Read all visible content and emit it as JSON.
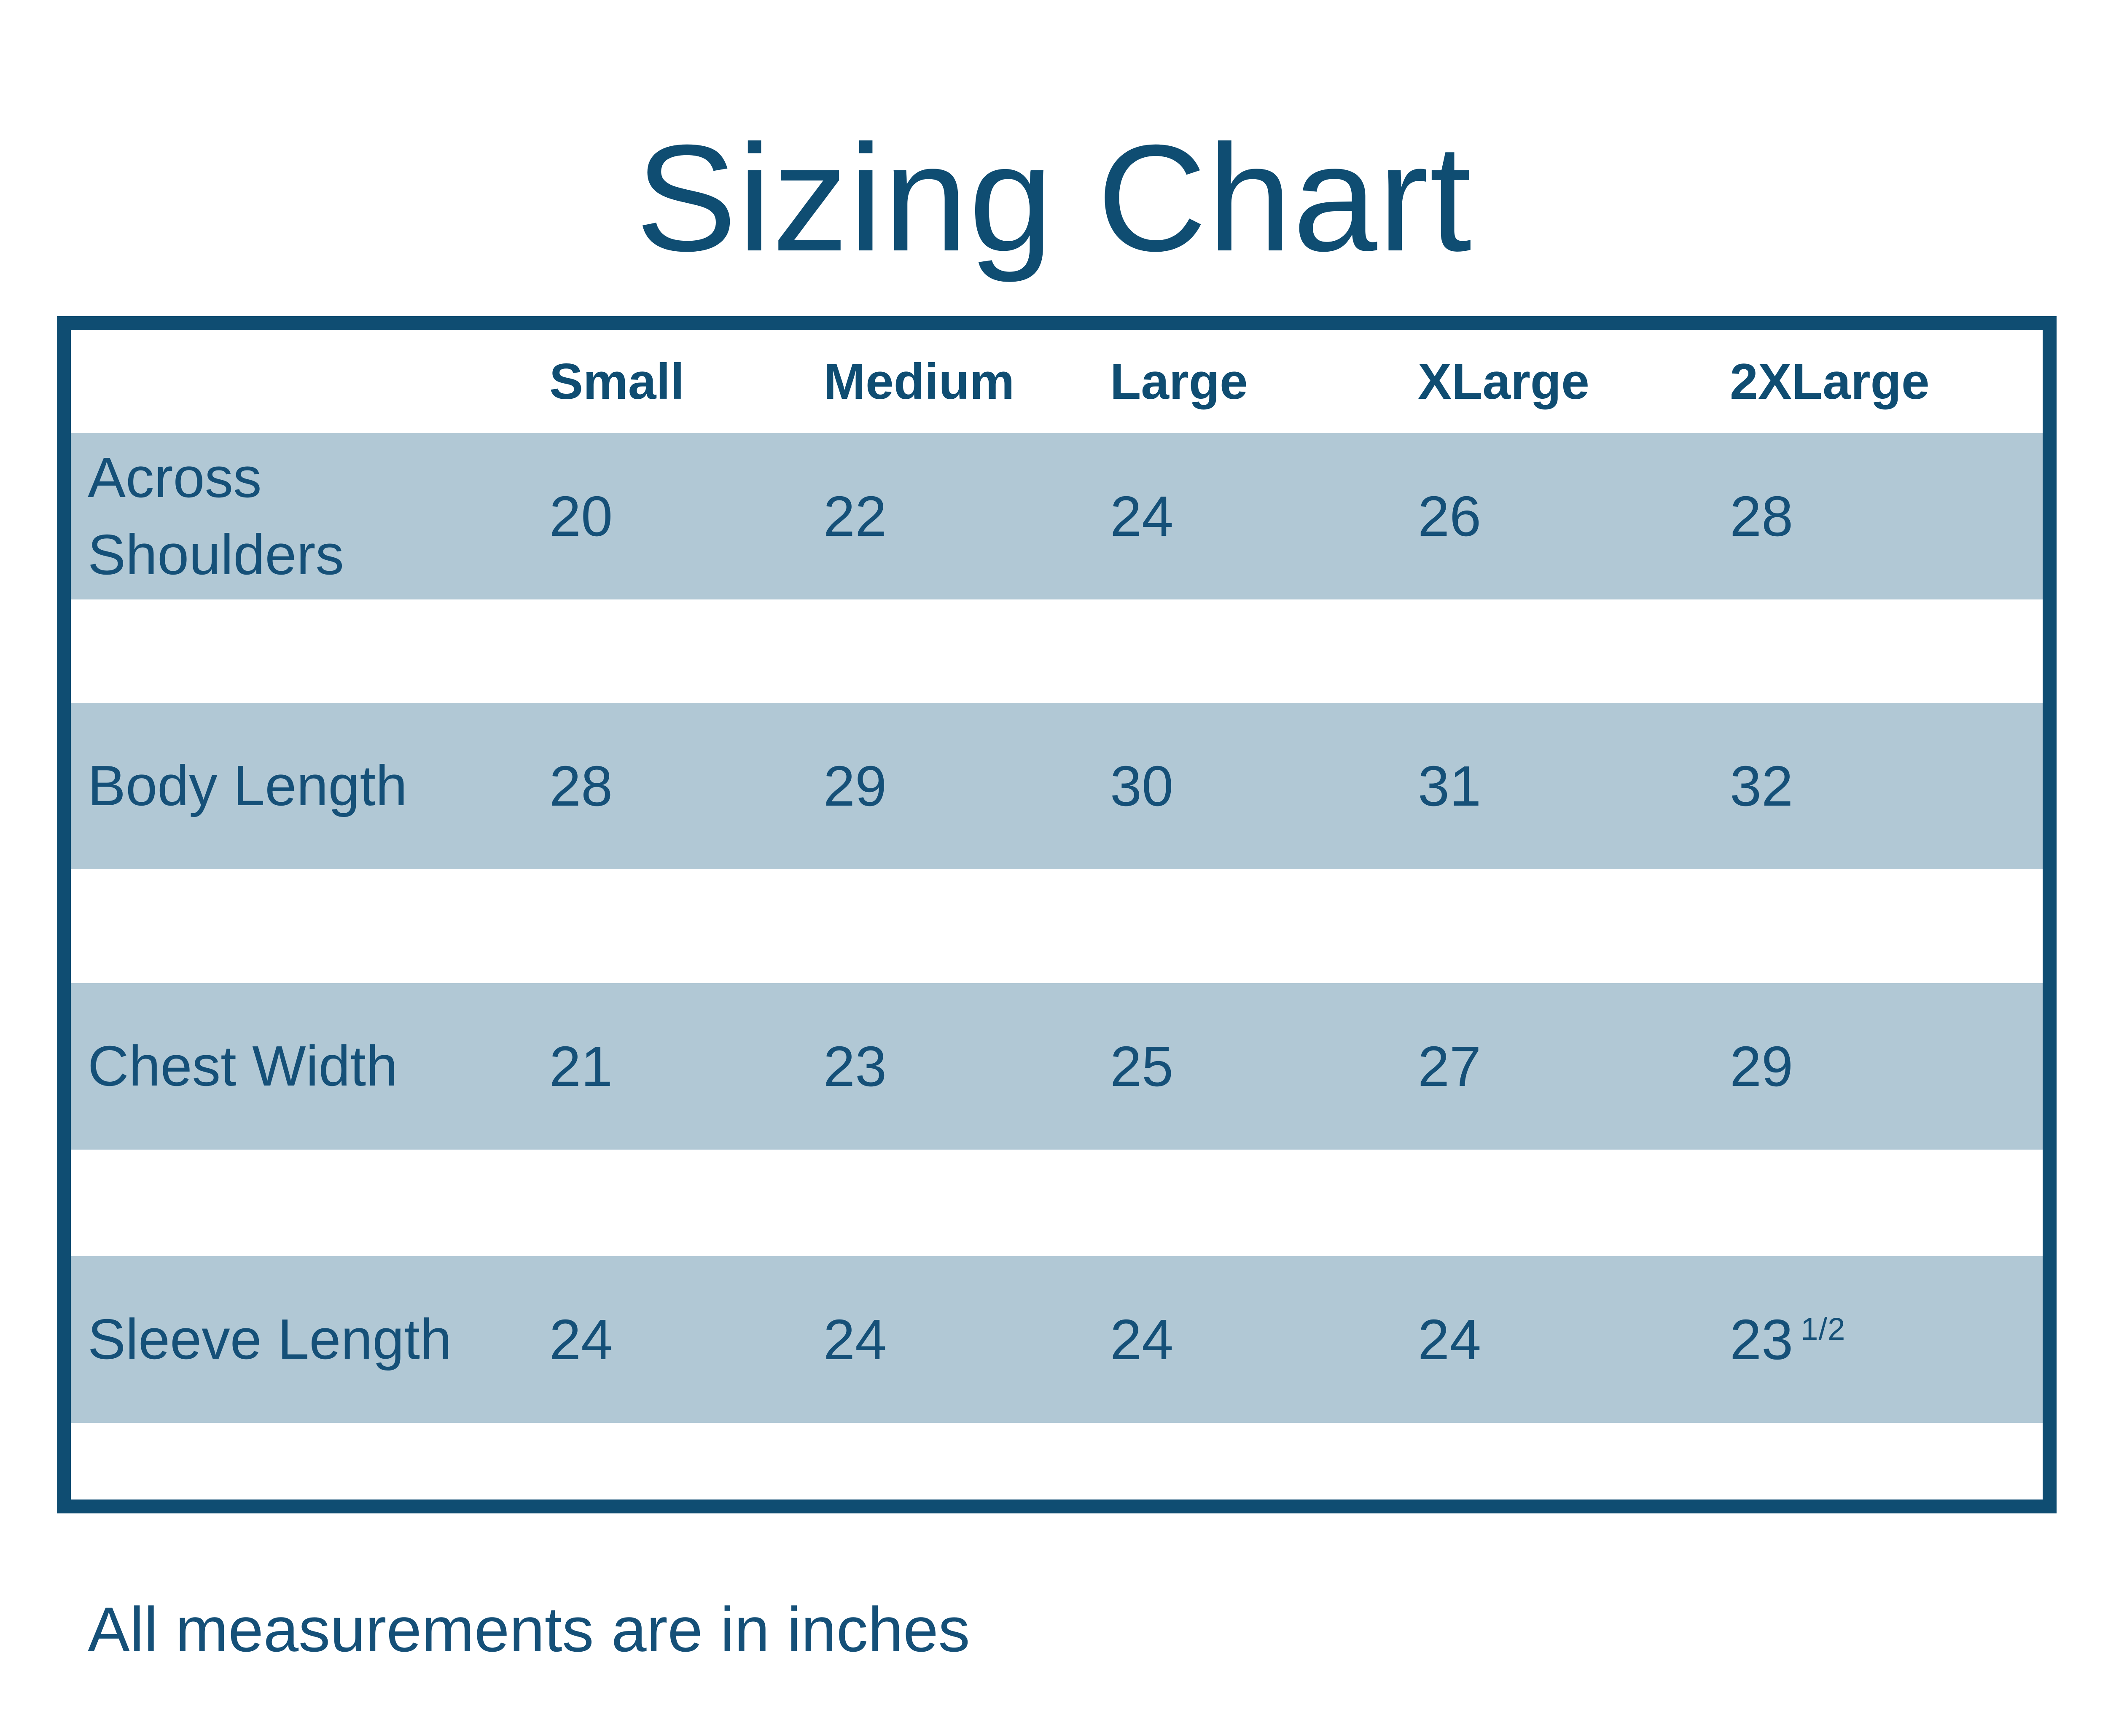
{
  "title": "Sizing Chart",
  "footnote": "All measurements are in inches",
  "colors": {
    "accent": "#0F4D72",
    "band": "#B1C8D5",
    "text": "#155078",
    "background": "#FFFFFF"
  },
  "table": {
    "columns": [
      "Small",
      "Medium",
      "Large",
      "XLarge",
      "2XLarge"
    ],
    "rows": [
      {
        "label": "Across Shoulders",
        "values": [
          "20",
          "22",
          "24",
          "26",
          "28"
        ]
      },
      {
        "label": "Body Length",
        "values": [
          "28",
          "29",
          "30",
          "31",
          "32"
        ]
      },
      {
        "label": "Chest Width",
        "values": [
          "21",
          "23",
          "25",
          "27",
          "29"
        ]
      },
      {
        "label": "Sleeve Length",
        "values": [
          "24",
          "24",
          "24",
          "24",
          "23 1/2"
        ]
      }
    ]
  }
}
